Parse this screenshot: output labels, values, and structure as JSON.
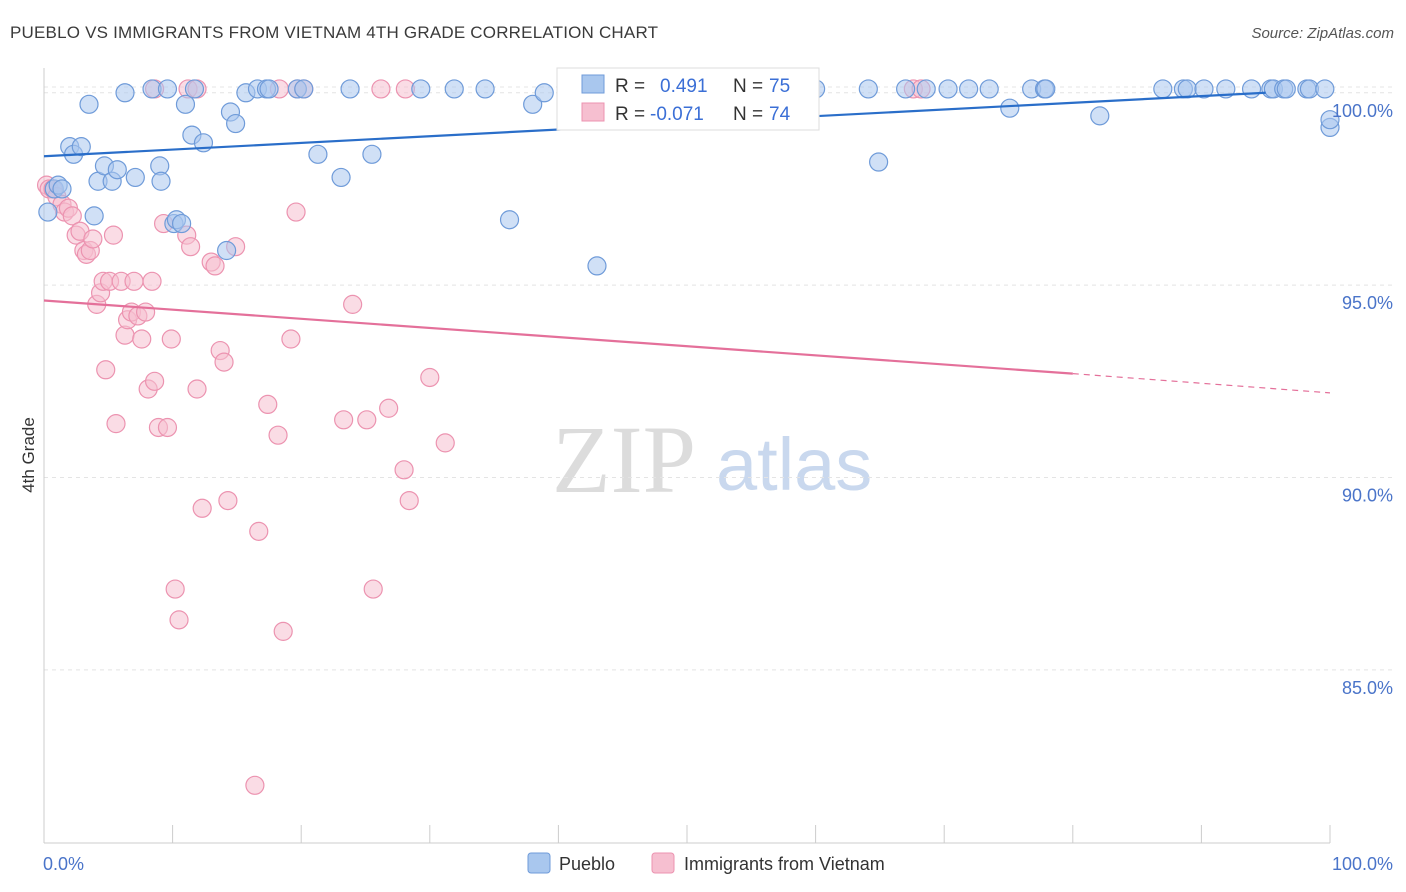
{
  "title": "PUEBLO VS IMMIGRANTS FROM VIETNAM 4TH GRADE CORRELATION CHART",
  "source": "Source: ZipAtlas.com",
  "watermark": {
    "zip": "ZIP",
    "atlas": "atlas"
  },
  "colors": {
    "pueblo_fill": "#a9c7ee",
    "pueblo_stroke": "#6f9bd9",
    "pueblo_line": "#2a6ec9",
    "vietnam_fill": "#f6bfd0",
    "vietnam_stroke": "#ec93b0",
    "vietnam_line": "#e4709a",
    "grid": "#e4e4e4",
    "axis_text": "#4a74c9"
  },
  "chart_data": {
    "type": "scatter",
    "title": "PUEBLO VS IMMIGRANTS FROM VIETNAM 4TH GRADE CORRELATION CHART",
    "xlabel": "",
    "ylabel": "4th Grade",
    "xlim": [
      0,
      100
    ],
    "ylim": [
      80.5,
      100.8
    ],
    "x_tick_labels": [
      {
        "value": 0,
        "label": "0.0%"
      },
      {
        "value": 100,
        "label": "100.0%"
      }
    ],
    "y_tick_labels": [
      {
        "value": 100,
        "label": "100.0%"
      },
      {
        "value": 95,
        "label": "95.0%"
      },
      {
        "value": 90,
        "label": "90.0%"
      },
      {
        "value": 85,
        "label": "85.0%"
      }
    ],
    "legend": {
      "position": "bottom-center",
      "entries": [
        "Pueblo",
        "Immigrants from Vietnam"
      ]
    },
    "stats": [
      {
        "series": "Pueblo",
        "r_label": "R =",
        "r": "0.491",
        "n_label": "N =",
        "n": "75"
      },
      {
        "series": "Immigrants from Vietnam",
        "r_label": "R =",
        "r": "-0.071",
        "n_label": "N =",
        "n": "74"
      }
    ],
    "series": [
      {
        "name": "Pueblo",
        "trend": {
          "x": [
            0,
            95
          ],
          "y": [
            98.35,
            100.0
          ],
          "dashed_to": null
        },
        "points": [
          [
            0.3,
            96.9
          ],
          [
            0.8,
            97.5
          ],
          [
            1.1,
            97.6
          ],
          [
            1.4,
            97.5
          ],
          [
            2.0,
            98.6
          ],
          [
            2.3,
            98.4
          ],
          [
            2.9,
            98.6
          ],
          [
            3.5,
            99.7
          ],
          [
            3.9,
            96.8
          ],
          [
            4.2,
            97.7
          ],
          [
            4.7,
            98.1
          ],
          [
            5.3,
            97.7
          ],
          [
            5.7,
            98.0
          ],
          [
            6.3,
            100.0
          ],
          [
            7.1,
            97.8
          ],
          [
            8.4,
            100.1
          ],
          [
            9.0,
            98.1
          ],
          [
            9.1,
            97.7
          ],
          [
            9.6,
            100.1
          ],
          [
            10.1,
            96.6
          ],
          [
            10.3,
            96.7
          ],
          [
            10.7,
            96.6
          ],
          [
            11.0,
            99.7
          ],
          [
            11.5,
            98.9
          ],
          [
            11.7,
            100.1
          ],
          [
            12.4,
            98.7
          ],
          [
            14.2,
            95.9
          ],
          [
            14.5,
            99.5
          ],
          [
            14.9,
            99.2
          ],
          [
            15.7,
            100.0
          ],
          [
            16.6,
            100.1
          ],
          [
            17.3,
            100.1
          ],
          [
            17.5,
            100.1
          ],
          [
            19.7,
            100.1
          ],
          [
            20.2,
            100.1
          ],
          [
            21.3,
            98.4
          ],
          [
            23.1,
            97.8
          ],
          [
            23.8,
            100.1
          ],
          [
            25.5,
            98.4
          ],
          [
            29.3,
            100.1
          ],
          [
            31.9,
            100.1
          ],
          [
            34.3,
            100.1
          ],
          [
            36.2,
            96.7
          ],
          [
            38.0,
            99.7
          ],
          [
            38.9,
            100.0
          ],
          [
            43.0,
            95.5
          ],
          [
            45.2,
            100.1
          ],
          [
            60.0,
            100.1
          ],
          [
            64.1,
            100.1
          ],
          [
            64.9,
            98.2
          ],
          [
            67.0,
            100.1
          ],
          [
            68.6,
            100.1
          ],
          [
            70.3,
            100.1
          ],
          [
            71.9,
            100.1
          ],
          [
            73.5,
            100.1
          ],
          [
            75.1,
            99.6
          ],
          [
            76.8,
            100.1
          ],
          [
            77.8,
            100.1
          ],
          [
            77.9,
            100.1
          ],
          [
            82.1,
            99.4
          ],
          [
            87.0,
            100.1
          ],
          [
            88.6,
            100.1
          ],
          [
            88.9,
            100.1
          ],
          [
            90.2,
            100.1
          ],
          [
            91.9,
            100.1
          ],
          [
            93.9,
            100.1
          ],
          [
            95.4,
            100.1
          ],
          [
            95.6,
            100.1
          ],
          [
            96.4,
            100.1
          ],
          [
            96.6,
            100.1
          ],
          [
            98.2,
            100.1
          ],
          [
            98.4,
            100.1
          ],
          [
            99.6,
            100.1
          ],
          [
            100.0,
            99.1
          ],
          [
            100.0,
            99.3
          ]
        ]
      },
      {
        "name": "Immigrants from Vietnam",
        "trend": {
          "x": [
            0,
            80
          ],
          "y": [
            94.6,
            92.7
          ],
          "dashed_to": [
            100,
            92.2
          ]
        },
        "points": [
          [
            0.2,
            97.6
          ],
          [
            0.4,
            97.5
          ],
          [
            0.7,
            97.5
          ],
          [
            1.0,
            97.3
          ],
          [
            1.4,
            97.1
          ],
          [
            1.6,
            96.9
          ],
          [
            1.9,
            97.0
          ],
          [
            2.2,
            96.8
          ],
          [
            2.5,
            96.3
          ],
          [
            2.8,
            96.4
          ],
          [
            3.1,
            95.9
          ],
          [
            3.3,
            95.8
          ],
          [
            3.6,
            95.9
          ],
          [
            3.8,
            96.2
          ],
          [
            4.1,
            94.5
          ],
          [
            4.4,
            94.8
          ],
          [
            4.6,
            95.1
          ],
          [
            4.8,
            92.8
          ],
          [
            5.1,
            95.1
          ],
          [
            5.4,
            96.3
          ],
          [
            5.6,
            91.4
          ],
          [
            6.0,
            95.1
          ],
          [
            6.3,
            93.7
          ],
          [
            6.5,
            94.1
          ],
          [
            6.8,
            94.3
          ],
          [
            7.0,
            95.1
          ],
          [
            7.3,
            94.2
          ],
          [
            7.6,
            93.6
          ],
          [
            7.9,
            94.3
          ],
          [
            8.1,
            92.3
          ],
          [
            8.4,
            95.1
          ],
          [
            8.6,
            92.5
          ],
          [
            8.9,
            91.3
          ],
          [
            9.3,
            96.6
          ],
          [
            9.6,
            91.3
          ],
          [
            9.9,
            93.6
          ],
          [
            10.2,
            87.1
          ],
          [
            10.5,
            86.3
          ],
          [
            11.1,
            96.3
          ],
          [
            11.4,
            96.0
          ],
          [
            11.9,
            92.3
          ],
          [
            12.3,
            89.2
          ],
          [
            13.0,
            95.6
          ],
          [
            13.3,
            95.5
          ],
          [
            13.7,
            93.3
          ],
          [
            14.0,
            93.0
          ],
          [
            14.3,
            89.4
          ],
          [
            14.9,
            96.0
          ],
          [
            16.4,
            82.0
          ],
          [
            16.7,
            88.6
          ],
          [
            17.4,
            91.9
          ],
          [
            18.2,
            91.1
          ],
          [
            18.6,
            86.0
          ],
          [
            19.2,
            93.6
          ],
          [
            19.6,
            96.9
          ],
          [
            23.3,
            91.5
          ],
          [
            24.0,
            94.5
          ],
          [
            25.1,
            91.5
          ],
          [
            25.6,
            87.1
          ],
          [
            26.8,
            91.8
          ],
          [
            28.0,
            90.2
          ],
          [
            28.4,
            89.4
          ],
          [
            30.0,
            92.6
          ],
          [
            31.2,
            90.9
          ],
          [
            8.6,
            100.1
          ],
          [
            11.2,
            100.1
          ],
          [
            11.9,
            100.1
          ],
          [
            18.3,
            100.1
          ],
          [
            19.7,
            100.1
          ],
          [
            20.2,
            100.1
          ],
          [
            26.2,
            100.1
          ],
          [
            28.1,
            100.1
          ],
          [
            67.6,
            100.1
          ],
          [
            68.2,
            100.1
          ]
        ]
      }
    ]
  }
}
